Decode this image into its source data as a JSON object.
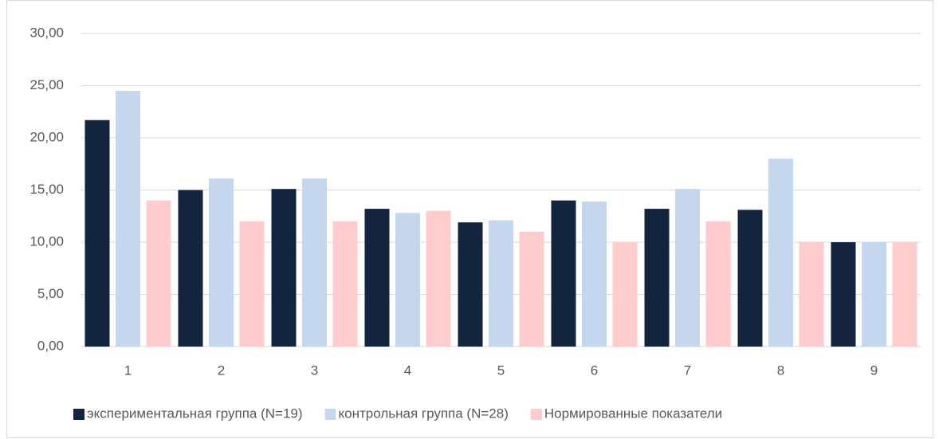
{
  "chart_data": {
    "type": "bar",
    "categories": [
      "1",
      "2",
      "3",
      "4",
      "5",
      "6",
      "7",
      "8",
      "9"
    ],
    "series": [
      {
        "name": "экспериментальная группа (N=19)",
        "color": "#13243f",
        "values": [
          21.7,
          15.0,
          15.1,
          13.2,
          11.9,
          14.0,
          13.2,
          13.1,
          10.0
        ]
      },
      {
        "name": "контрольная группа (N=28)",
        "color": "#c5d7ef",
        "values": [
          24.5,
          16.1,
          16.1,
          12.8,
          12.1,
          13.9,
          15.1,
          18.0,
          10.0
        ]
      },
      {
        "name": "Нормированные показатели",
        "color": "#fecccc",
        "values": [
          14,
          12,
          12,
          13,
          11,
          10,
          12,
          10,
          10
        ]
      }
    ],
    "ylim": [
      0,
      30
    ],
    "yticks": [
      {
        "value": 0,
        "label": "0,00"
      },
      {
        "value": 5,
        "label": "5,00"
      },
      {
        "value": 10,
        "label": "10,00"
      },
      {
        "value": 15,
        "label": "15,00"
      },
      {
        "value": 20,
        "label": "20,00"
      },
      {
        "value": 25,
        "label": "25,00"
      },
      {
        "value": 30,
        "label": "30,00"
      }
    ],
    "grid": true,
    "legend": "bottom"
  }
}
